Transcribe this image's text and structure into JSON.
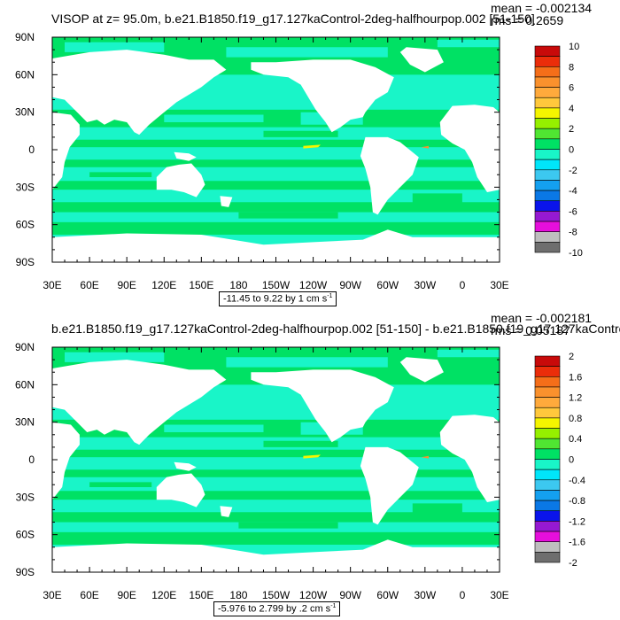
{
  "colors": {
    "land": "#ffffff",
    "axis": "#000000",
    "palette": [
      "#6e6e6e",
      "#bebebe",
      "#e60fdc",
      "#9619d2",
      "#0a14eb",
      "#0a78e6",
      "#14a0f0",
      "#3cc8f0",
      "#00e6fa",
      "#19f5c8",
      "#00e164",
      "#50e632",
      "#96f000",
      "#f5f500",
      "#ffc83c",
      "#ffaa3c",
      "#fa912d",
      "#f56e19",
      "#eb2d0a",
      "#c80a0a"
    ]
  },
  "chart_data": [
    {
      "type": "heatmap",
      "title": "VISOP at z=  95.0m, b.e21.B1850.f19_g17.127kaControl-2deg-halfhourpop.002 [51-150]",
      "mean_text": "mean = -0.002134",
      "rms_text": "rms = 0.2659",
      "range_text": "-11.45 to 9.22 by 1 cm s",
      "range_sup": "-1",
      "x_ticks": [
        "30E",
        "60E",
        "90E",
        "120E",
        "150E",
        "180",
        "150W",
        "120W",
        "90W",
        "60W",
        "30W",
        "0",
        "30E"
      ],
      "y_ticks": [
        "90N",
        "60N",
        "30N",
        "0",
        "30S",
        "60S",
        "90S"
      ],
      "colorbar_labels": [
        "10",
        "8",
        "6",
        "4",
        "2",
        "0",
        "-2",
        "-4",
        "-6",
        "-8",
        "-10"
      ],
      "levels": [
        -10,
        -9,
        -8,
        -7,
        -6,
        -5,
        -4,
        -3,
        -2,
        -1,
        0,
        1,
        2,
        3,
        4,
        5,
        6,
        7,
        8,
        9,
        10
      ],
      "xlim": [
        30,
        390
      ],
      "ylim": [
        -90,
        90
      ]
    },
    {
      "type": "heatmap",
      "title": "b.e21.B1850.f19_g17.127kaControl-2deg-halfhourpop.002 [51-150] - b.e21.B1850.f19_g17.127kaContro",
      "mean_text": "mean = -0.002181",
      "rms_text": "rms = 0.05187",
      "range_text": "-5.976 to 2.799 by .2 cm s",
      "range_sup": "-1",
      "x_ticks": [
        "30E",
        "60E",
        "90E",
        "120E",
        "150E",
        "180",
        "150W",
        "120W",
        "90W",
        "60W",
        "30W",
        "0",
        "30E"
      ],
      "y_ticks": [
        "90N",
        "60N",
        "30N",
        "0",
        "30S",
        "60S",
        "90S"
      ],
      "colorbar_labels": [
        "2",
        "1.6",
        "1.2",
        "0.8",
        "0.4",
        "0",
        "-0.4",
        "-0.8",
        "-1.2",
        "-1.6",
        "-2"
      ],
      "levels": [
        -2,
        -1.8,
        -1.6,
        -1.4,
        -1.2,
        -1,
        -0.8,
        -0.6,
        -0.4,
        -0.2,
        0,
        0.2,
        0.4,
        0.6,
        0.8,
        1,
        1.2,
        1.4,
        1.6,
        1.8,
        2
      ],
      "xlim": [
        30,
        390
      ],
      "ylim": [
        -90,
        90
      ]
    }
  ]
}
